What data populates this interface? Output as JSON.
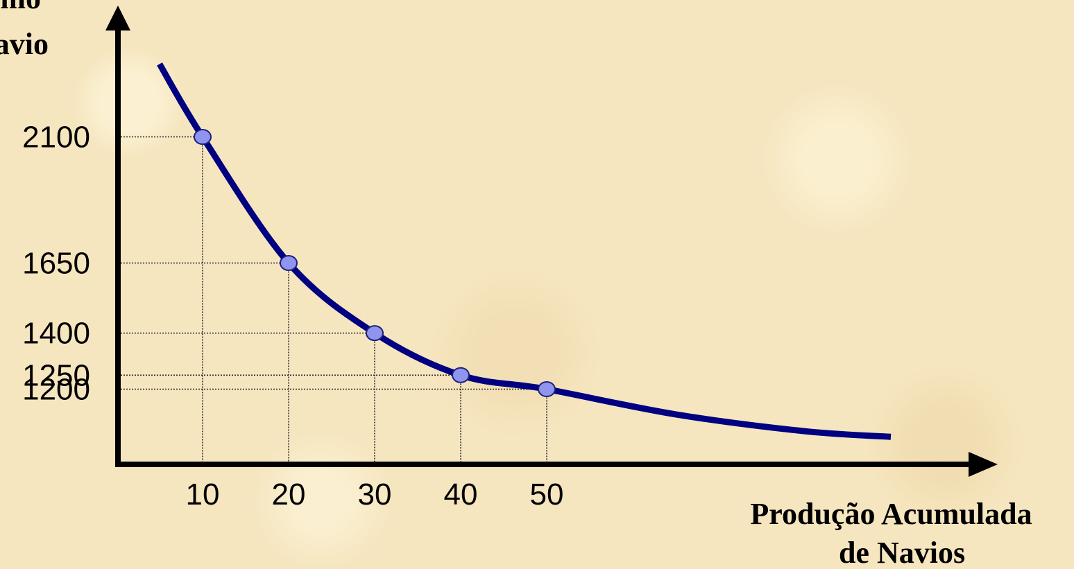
{
  "chart_data": {
    "type": "line",
    "title": "",
    "ylabel_lines": [
      "imo",
      "avio"
    ],
    "xlabel_lines": [
      "Produção Acumulada",
      "de Navios"
    ],
    "x_ticks": [
      "10",
      "20",
      "30",
      "40",
      "50"
    ],
    "y_ticks": [
      "2100",
      "1650",
      "1400",
      "1250",
      "1200"
    ],
    "points": [
      {
        "x": 10,
        "y": 2100
      },
      {
        "x": 20,
        "y": 1650
      },
      {
        "x": 30,
        "y": 1400
      },
      {
        "x": 40,
        "y": 1250
      },
      {
        "x": 50,
        "y": 1200
      }
    ],
    "curve": [
      {
        "x": 5,
        "y": 2360
      },
      {
        "x": 10,
        "y": 2100
      },
      {
        "x": 20,
        "y": 1650
      },
      {
        "x": 30,
        "y": 1400
      },
      {
        "x": 40,
        "y": 1250
      },
      {
        "x": 50,
        "y": 1200
      },
      {
        "x": 65,
        "y": 1110
      },
      {
        "x": 80,
        "y": 1050
      },
      {
        "x": 90,
        "y": 1030
      }
    ],
    "grid": "dotted guide lines from each point to both axes",
    "colors": {
      "curve": "#000080",
      "marker": "#8f95ee",
      "marker_stroke": "#1f1f7a",
      "axis": "#000000"
    }
  }
}
